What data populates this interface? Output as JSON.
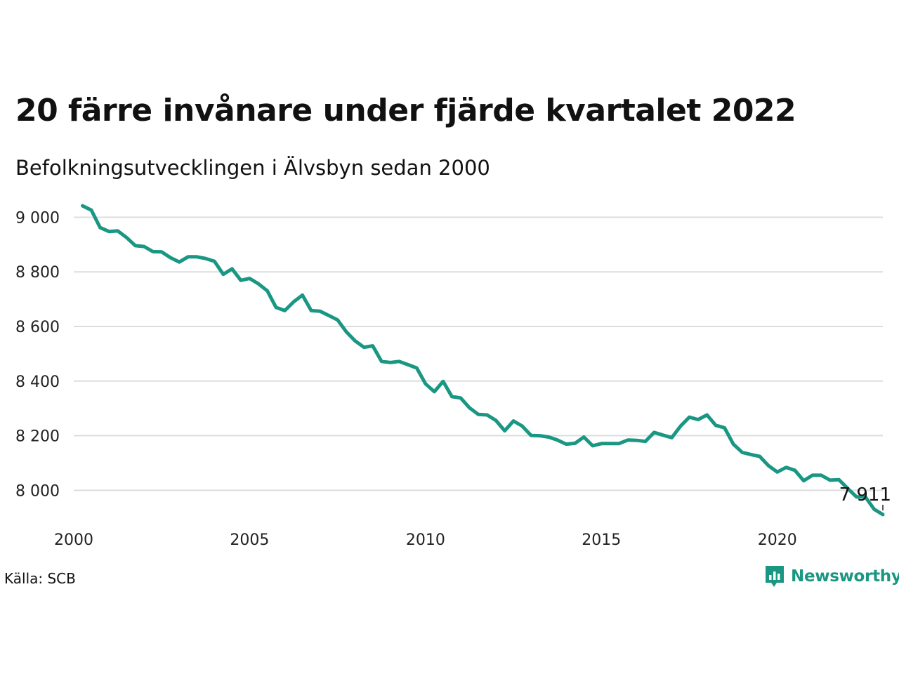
{
  "header": {
    "title": "20 färre invånare under fjärde kvartalet 2022",
    "subtitle": "Befolkningsutvecklingen i Älvsbyn sedan 2000"
  },
  "footer": {
    "source": "Källa: SCB",
    "brand": "Newsworthy",
    "brand_icon": "newsworthy-logo-icon",
    "brand_color": "#1a9783"
  },
  "chart_data": {
    "type": "line",
    "title": "20 färre invånare under fjärde kvartalet 2022",
    "subtitle": "Befolkningsutvecklingen i Älvsbyn sedan 2000",
    "xlabel": "",
    "ylabel": "",
    "xlim": [
      2000,
      2023
    ],
    "ylim": [
      7880,
      9050
    ],
    "x_ticks": [
      2000,
      2005,
      2010,
      2015,
      2020
    ],
    "x_tick_labels": [
      "2000",
      "2005",
      "2010",
      "2015",
      "2020"
    ],
    "y_ticks": [
      8000,
      8200,
      8400,
      8600,
      8800,
      9000
    ],
    "y_tick_labels": [
      "8 000",
      "8 200",
      "8 400",
      "8 600",
      "8 800",
      "9 000"
    ],
    "grid": true,
    "legend": "none",
    "color": "#1a9783",
    "end_label": "7 911",
    "series": [
      {
        "x": [
          2000.25,
          2000.5,
          2000.75,
          2001.0,
          2001.25,
          2001.5,
          2001.75,
          2002.0,
          2002.25,
          2002.5,
          2002.75,
          2003.0,
          2003.25,
          2003.5,
          2003.75,
          2004.0,
          2004.25,
          2004.5,
          2004.75,
          2005.0,
          2005.25,
          2005.5,
          2005.75,
          2006.0,
          2006.25,
          2006.5,
          2006.75,
          2007.0,
          2007.25,
          2007.5,
          2007.75,
          2008.0,
          2008.25,
          2008.5,
          2008.75,
          2009.0,
          2009.25,
          2009.5,
          2009.75,
          2010.0,
          2010.25,
          2010.5,
          2010.75,
          2011.0,
          2011.25,
          2011.5,
          2011.75,
          2012.0,
          2012.25,
          2012.5,
          2012.75,
          2013.0,
          2013.25,
          2013.5,
          2013.75,
          2014.0,
          2014.25,
          2014.5,
          2014.75,
          2015.0,
          2015.25,
          2015.5,
          2015.75,
          2016.0,
          2016.25,
          2016.5,
          2016.75,
          2017.0,
          2017.25,
          2017.5,
          2017.75,
          2018.0,
          2018.25,
          2018.5,
          2018.75,
          2019.0,
          2019.25,
          2019.5,
          2019.75,
          2020.0,
          2020.25,
          2020.5,
          2020.75,
          2021.0,
          2021.25,
          2021.5,
          2021.75,
          2022.0,
          2022.25,
          2022.5,
          2022.75,
          2023.0
        ],
        "values": [
          9042,
          9026,
          8962,
          8948,
          8950,
          8926,
          8896,
          8893,
          8874,
          8873,
          8852,
          8836,
          8855,
          8855,
          8849,
          8839,
          8791,
          8811,
          8769,
          8776,
          8756,
          8731,
          8670,
          8658,
          8690,
          8715,
          8658,
          8656,
          8640,
          8624,
          8580,
          8547,
          8524,
          8529,
          8472,
          8468,
          8472,
          8460,
          8448,
          8390,
          8361,
          8399,
          8343,
          8338,
          8302,
          8278,
          8276,
          8256,
          8218,
          8254,
          8235,
          8201,
          8200,
          8195,
          8184,
          8169,
          8172,
          8195,
          8163,
          8171,
          8171,
          8171,
          8184,
          8183,
          8179,
          8212,
          8202,
          8193,
          8235,
          8268,
          8259,
          8276,
          8238,
          8229,
          8169,
          8139,
          8131,
          8124,
          8090,
          8067,
          8084,
          8073,
          8035,
          8055,
          8055,
          8037,
          8039,
          8007,
          7976,
          7976,
          7931,
          7911
        ]
      }
    ]
  }
}
